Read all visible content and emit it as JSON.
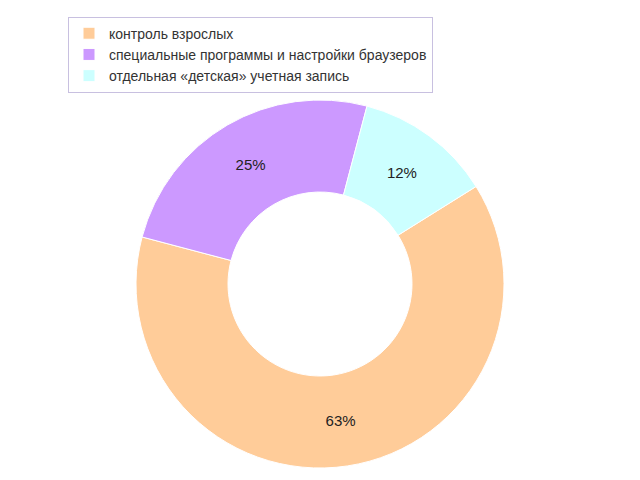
{
  "chart_data": {
    "type": "pie",
    "categories": [
      "контроль взрослых",
      "специальные программы и настройки браузеров",
      "отдельная «детская» учетная запись"
    ],
    "values": [
      63,
      25,
      12
    ],
    "value_labels": [
      "63%",
      "25%",
      "12%"
    ],
    "colors": [
      "#FFCC99",
      "#CC99FF",
      "#CCFFFF"
    ],
    "data_labels": true,
    "legend": "top-left"
  }
}
